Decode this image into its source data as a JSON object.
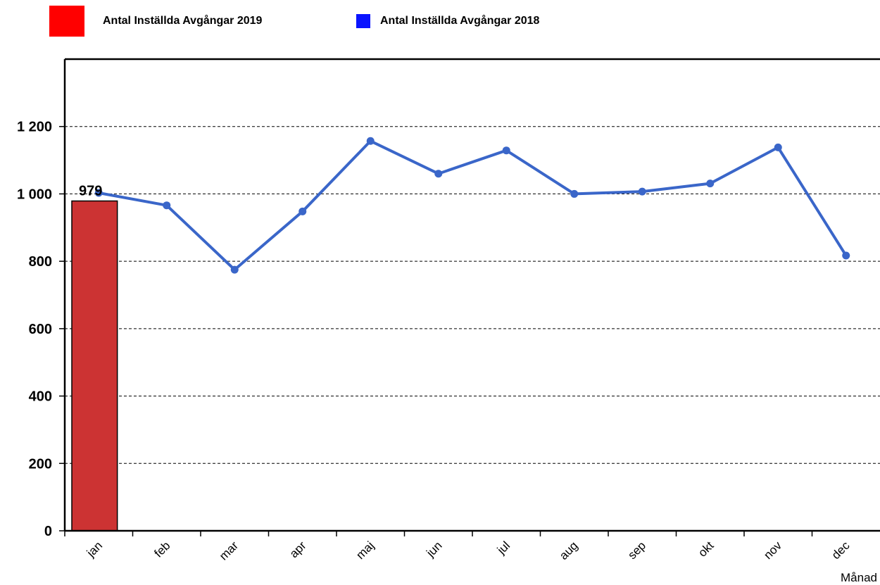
{
  "legend": {
    "series_2019": "Antal Inställda Avgångar 2019",
    "series_2018": "Antal Inställda Avgångar 2018"
  },
  "colors": {
    "bar_2019": "#cc3333",
    "legend_2019": "#ff0000",
    "line_2018": "#3a66c9",
    "legend_2018": "#0a14ff"
  },
  "chart_data": {
    "type": "bar+line",
    "categories": [
      "jan",
      "feb",
      "mar",
      "apr",
      "maj",
      "jun",
      "jul",
      "aug",
      "sep",
      "okt",
      "nov",
      "dec"
    ],
    "series": [
      {
        "name": "Antal Inställda Avgångar 2019",
        "type": "bar",
        "values": [
          979,
          null,
          null,
          null,
          null,
          null,
          null,
          null,
          null,
          null,
          null,
          null
        ],
        "data_labels": [
          "979"
        ]
      },
      {
        "name": "Antal Inställda Avgångar 2018",
        "type": "line",
        "values": [
          1003,
          966,
          775,
          948,
          1157,
          1060,
          1129,
          1000,
          1007,
          1031,
          1138,
          817
        ]
      }
    ],
    "yticks": [
      "0",
      "200",
      "400",
      "600",
      "800",
      "1 000",
      "1 200"
    ],
    "ytick_values": [
      0,
      200,
      400,
      600,
      800,
      1000,
      1200
    ],
    "ylim": [
      0,
      1400
    ],
    "xlabel": "Månad",
    "ylabel": "",
    "grid": "horizontal dashed",
    "legend_position": "top-left"
  }
}
